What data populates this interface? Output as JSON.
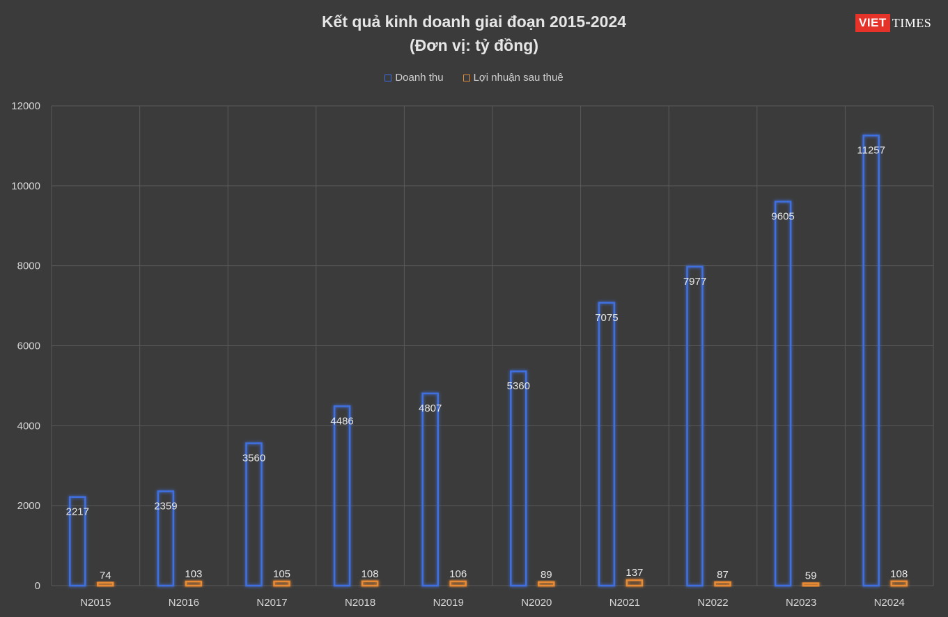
{
  "chart_data": {
    "type": "bar",
    "title": "Kết quả kinh doanh giai đoạn 2015-2024",
    "subtitle": "(Đơn vị: tỷ đồng)",
    "categories": [
      "N2015",
      "N2016",
      "N2017",
      "N2018",
      "N2019",
      "N2020",
      "N2021",
      "N2022",
      "N2023",
      "N2024"
    ],
    "series": [
      {
        "name": "Doanh thu",
        "color": "#3f6fe0",
        "values": [
          2217,
          2359,
          3560,
          4486,
          4807,
          5360,
          7075,
          7977,
          9605,
          11257
        ]
      },
      {
        "name": "Lợi nhuận sau thuê",
        "color": "#e98a35",
        "values": [
          74,
          103,
          105,
          108,
          106,
          89,
          137,
          87,
          59,
          108
        ]
      }
    ],
    "ylim": [
      0,
      12000
    ],
    "yticks": [
      0,
      2000,
      4000,
      6000,
      8000,
      10000,
      12000
    ],
    "grid": true,
    "legend_position": "top"
  },
  "logo": {
    "left": "VIET",
    "right": "TIMES"
  },
  "colors": {
    "background": "#3b3b3b",
    "grid": "#5a5a5a",
    "text": "#d6d6d6"
  }
}
